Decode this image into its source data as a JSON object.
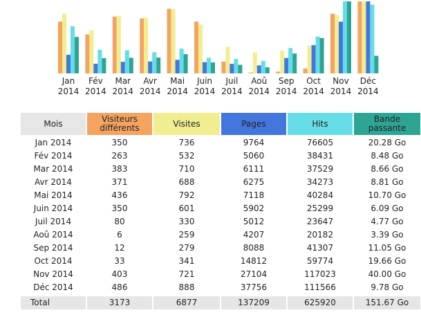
{
  "colors": {
    "visitors": "#f4a460",
    "visits": "#f0ee91",
    "pages": "#4477dd",
    "hits": "#66dde6",
    "bandwidth": "#2ea495",
    "label_header": "#e6e6e6"
  },
  "chart_data": {
    "type": "bar",
    "categories": [
      "Jan\n2014",
      "Fév\n2014",
      "Mar\n2014",
      "Avr\n2014",
      "Mai\n2014",
      "Juin\n2014",
      "Juil\n2014",
      "Aoû\n2014",
      "Sep\n2014",
      "Oct\n2014",
      "Nov\n2014",
      "Déc\n2014"
    ],
    "series": [
      {
        "name": "Visiteurs différents",
        "color": "#f4a460",
        "values": [
          350,
          263,
          383,
          371,
          436,
          350,
          80,
          6,
          12,
          33,
          403,
          486
        ]
      },
      {
        "name": "Visites",
        "color": "#f0ee91",
        "values": [
          736,
          532,
          710,
          688,
          792,
          601,
          330,
          259,
          279,
          341,
          721,
          888
        ]
      },
      {
        "name": "Pages",
        "color": "#4477dd",
        "values": [
          9764,
          5060,
          6111,
          6275,
          7118,
          5902,
          5012,
          4207,
          8088,
          14812,
          27104,
          37756
        ]
      },
      {
        "name": "Hits",
        "color": "#66dde6",
        "values": [
          76605,
          38431,
          37529,
          34273,
          40284,
          25299,
          23647,
          20182,
          41307,
          59774,
          117023,
          111566
        ]
      },
      {
        "name": "Bande passante",
        "color": "#2ea495",
        "values": [
          20.28,
          8.48,
          8.66,
          8.81,
          10.7,
          6.09,
          4.77,
          3.39,
          11.05,
          19.66,
          40.0,
          9.78
        ]
      }
    ],
    "xlabel": "",
    "ylabel": ""
  },
  "table": {
    "headers": [
      "Mois",
      "Visiteurs\ndifférents",
      "Visites",
      "Pages",
      "Hits",
      "Bande\npassante"
    ],
    "header_colors": [
      "#e6e6e6",
      "#f4a460",
      "#f0ee91",
      "#4477dd",
      "#66dde6",
      "#2ea495"
    ],
    "rows": [
      [
        "Jan 2014",
        "350",
        "736",
        "9764",
        "76605",
        "20.28 Go"
      ],
      [
        "Fév 2014",
        "263",
        "532",
        "5060",
        "38431",
        "8.48 Go"
      ],
      [
        "Mar 2014",
        "383",
        "710",
        "6111",
        "37529",
        "8.66 Go"
      ],
      [
        "Avr 2014",
        "371",
        "688",
        "6275",
        "34273",
        "8.81 Go"
      ],
      [
        "Mai 2014",
        "436",
        "792",
        "7118",
        "40284",
        "10.70 Go"
      ],
      [
        "Juin 2014",
        "350",
        "601",
        "5902",
        "25299",
        "6.09 Go"
      ],
      [
        "Juil 2014",
        "80",
        "330",
        "5012",
        "23647",
        "4.77 Go"
      ],
      [
        "Aoû 2014",
        "6",
        "259",
        "4207",
        "20182",
        "3.39 Go"
      ],
      [
        "Sep 2014",
        "12",
        "279",
        "8088",
        "41307",
        "11.05 Go"
      ],
      [
        "Oct 2014",
        "33",
        "341",
        "14812",
        "59774",
        "19.66 Go"
      ],
      [
        "Nov 2014",
        "403",
        "721",
        "27104",
        "117023",
        "40.00 Go"
      ],
      [
        "Déc 2014",
        "486",
        "888",
        "37756",
        "111566",
        "9.78 Go"
      ]
    ],
    "total": [
      "Total",
      "3173",
      "6877",
      "137209",
      "625920",
      "151.67 Go"
    ]
  }
}
